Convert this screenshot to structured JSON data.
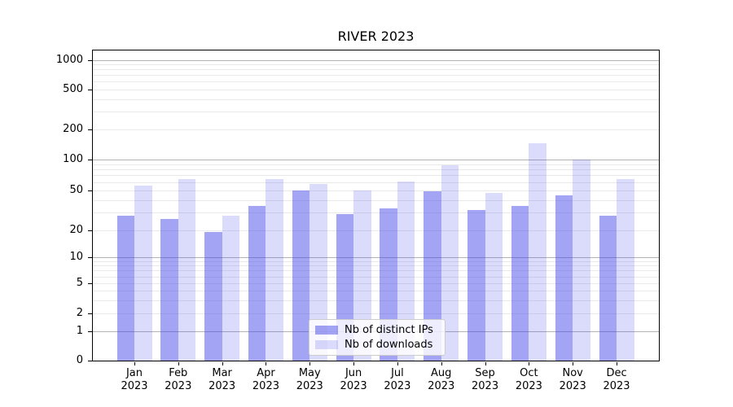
{
  "chart_data": {
    "type": "bar",
    "title": "RIVER 2023",
    "categories": [
      "Jan 2023",
      "Feb 2023",
      "Mar 2023",
      "Apr 2023",
      "May 2023",
      "Jun 2023",
      "Jul 2023",
      "Aug 2023",
      "Sep 2023",
      "Oct 2023",
      "Nov 2023",
      "Dec 2023"
    ],
    "series": [
      {
        "name": "Nb of distinct IPs",
        "color": "#4444e87c",
        "values": [
          28,
          26,
          19,
          35,
          50,
          29,
          33,
          49,
          32,
          35,
          44,
          28
        ]
      },
      {
        "name": "Nb of downloads",
        "color": "#4444e831",
        "values": [
          55,
          64,
          28,
          64,
          57,
          50,
          61,
          88,
          47,
          145,
          100,
          64
        ]
      }
    ],
    "xlabel": "",
    "ylabel": "",
    "yscale": "log-like (0 baseline, log decades above 1)",
    "y_ticks": [
      0,
      1,
      2,
      5,
      10,
      20,
      50,
      100,
      200,
      500,
      1000
    ],
    "ylim": [
      0,
      1300
    ],
    "grid": {
      "enabled": true,
      "orientation": "horizontal",
      "major_color": "#b3b3b3",
      "minor_color": "#e9e9e9"
    },
    "legend": {
      "position": "lower-center",
      "background": "#ffffffcc",
      "border_color": "#cccccc"
    },
    "axis_color": "#000000"
  }
}
